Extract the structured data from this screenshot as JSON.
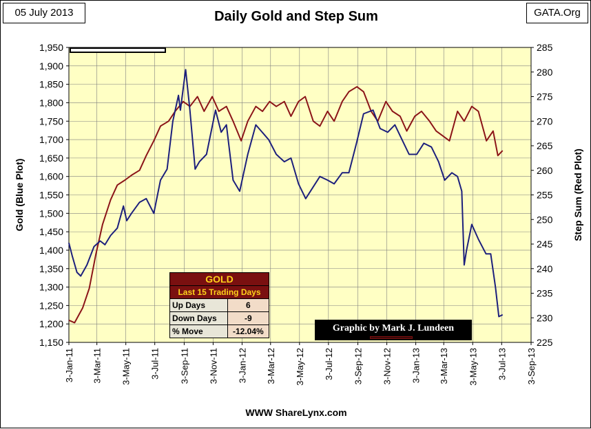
{
  "header": {
    "date": "05 July 2013",
    "title": "Daily Gold and Step Sum",
    "source": "GATA.Org"
  },
  "footer": {
    "url": "WWW ShareLynx.com"
  },
  "colors": {
    "plot_bg": "#ffffc4",
    "gold_line": "#1c1f7c",
    "step_line": "#8b1418",
    "grid": "#7f7f7f"
  },
  "stats": {
    "title": "GOLD",
    "subtitle": "Last 15 Trading Days",
    "rows": [
      {
        "label": "Up Days",
        "value": "6"
      },
      {
        "label": "Down Days",
        "value": "-9"
      },
      {
        "label": "% Move",
        "value": "-12.04%"
      }
    ]
  },
  "credit": {
    "text": "Graphic by Mark J. Lundeen"
  },
  "chart_data": {
    "type": "line",
    "title": "Daily Gold and Step Sum",
    "ylabel": "Gold  (Blue Plot)",
    "y2label": "Step Sum  (Red Plot)",
    "ylim": [
      1150,
      1950
    ],
    "y2lim": [
      225,
      285
    ],
    "x_start": "2011-01-03",
    "x_end": "2013-09-03",
    "x_ticks": [
      "3-Jan-11",
      "3-Mar-11",
      "3-May-11",
      "3-Jul-11",
      "3-Sep-11",
      "3-Nov-11",
      "3-Jan-12",
      "3-Mar-12",
      "3-May-12",
      "3-Jul-12",
      "3-Sep-12",
      "3-Nov-12",
      "3-Jan-13",
      "3-Mar-13",
      "3-May-13",
      "3-Jul-13",
      "3-Sep-13"
    ],
    "y_ticks": [
      "1,150",
      "1,200",
      "1,250",
      "1,300",
      "1,350",
      "1,400",
      "1,450",
      "1,500",
      "1,550",
      "1,600",
      "1,650",
      "1,700",
      "1,750",
      "1,800",
      "1,850",
      "1,900",
      "1,950"
    ],
    "y2_ticks": [
      "225",
      "230",
      "235",
      "240",
      "245",
      "250",
      "255",
      "260",
      "265",
      "270",
      "275",
      "280",
      "285"
    ],
    "grid": true,
    "series": [
      {
        "name": "Gold",
        "x": [
          "2011-01-03",
          "2011-01-10",
          "2011-01-20",
          "2011-01-28",
          "2011-02-10",
          "2011-02-25",
          "2011-03-10",
          "2011-03-20",
          "2011-04-01",
          "2011-04-15",
          "2011-04-28",
          "2011-05-05",
          "2011-05-15",
          "2011-06-01",
          "2011-06-15",
          "2011-07-01",
          "2011-07-15",
          "2011-07-29",
          "2011-08-10",
          "2011-08-22",
          "2011-08-26",
          "2011-09-06",
          "2011-09-15",
          "2011-09-26",
          "2011-10-05",
          "2011-10-20",
          "2011-11-08",
          "2011-11-20",
          "2011-12-01",
          "2011-12-15",
          "2011-12-29",
          "2012-01-15",
          "2012-02-01",
          "2012-02-28",
          "2012-03-15",
          "2012-04-01",
          "2012-04-15",
          "2012-05-01",
          "2012-05-16",
          "2012-05-31",
          "2012-06-15",
          "2012-07-01",
          "2012-07-15",
          "2012-08-01",
          "2012-08-15",
          "2012-08-31",
          "2012-09-15",
          "2012-10-05",
          "2012-10-20",
          "2012-11-05",
          "2012-11-20",
          "2012-12-05",
          "2012-12-20",
          "2013-01-05",
          "2013-01-20",
          "2013-02-05",
          "2013-02-20",
          "2013-03-05",
          "2013-03-20",
          "2013-04-01",
          "2013-04-10",
          "2013-04-15",
          "2013-04-20",
          "2013-05-01",
          "2013-05-15",
          "2013-05-31",
          "2013-06-10",
          "2013-06-20",
          "2013-06-27",
          "2013-07-05"
        ],
        "values": [
          1420,
          1385,
          1340,
          1330,
          1360,
          1410,
          1425,
          1415,
          1440,
          1460,
          1520,
          1480,
          1500,
          1530,
          1540,
          1500,
          1590,
          1620,
          1750,
          1820,
          1780,
          1890,
          1780,
          1620,
          1640,
          1660,
          1780,
          1720,
          1740,
          1590,
          1560,
          1660,
          1740,
          1700,
          1660,
          1640,
          1650,
          1580,
          1540,
          1570,
          1600,
          1590,
          1580,
          1610,
          1610,
          1690,
          1770,
          1780,
          1730,
          1720,
          1740,
          1700,
          1660,
          1660,
          1690,
          1680,
          1640,
          1590,
          1610,
          1600,
          1560,
          1360,
          1400,
          1470,
          1430,
          1390,
          1390,
          1300,
          1220,
          1225
        ]
      },
      {
        "name": "Step Sum",
        "x": [
          "2011-01-03",
          "2011-01-15",
          "2011-02-01",
          "2011-02-15",
          "2011-03-01",
          "2011-03-15",
          "2011-04-01",
          "2011-04-15",
          "2011-05-01",
          "2011-05-15",
          "2011-06-01",
          "2011-06-15",
          "2011-07-01",
          "2011-07-15",
          "2011-08-01",
          "2011-08-15",
          "2011-09-01",
          "2011-09-15",
          "2011-10-01",
          "2011-10-15",
          "2011-11-01",
          "2011-11-15",
          "2011-12-01",
          "2011-12-15",
          "2012-01-01",
          "2012-01-15",
          "2012-02-01",
          "2012-02-15",
          "2012-03-01",
          "2012-03-15",
          "2012-04-01",
          "2012-04-15",
          "2012-05-01",
          "2012-05-15",
          "2012-06-01",
          "2012-06-15",
          "2012-07-01",
          "2012-07-15",
          "2012-08-01",
          "2012-08-15",
          "2012-09-01",
          "2012-09-15",
          "2012-10-01",
          "2012-10-15",
          "2012-11-01",
          "2012-11-15",
          "2012-12-01",
          "2012-12-15",
          "2013-01-01",
          "2013-01-15",
          "2013-02-01",
          "2013-02-15",
          "2013-03-01",
          "2013-03-15",
          "2013-04-01",
          "2013-04-15",
          "2013-05-01",
          "2013-05-15",
          "2013-06-01",
          "2013-06-15",
          "2013-06-25",
          "2013-07-05"
        ],
        "values": [
          229.5,
          229,
          232,
          236,
          243,
          249,
          254,
          257,
          258,
          259,
          260,
          263,
          266,
          269,
          270,
          272,
          274,
          273,
          275,
          272,
          275,
          272,
          273,
          270,
          266,
          270,
          273,
          272,
          274,
          273,
          274,
          271,
          274,
          275,
          270,
          269,
          272,
          270,
          274,
          276,
          277,
          276,
          272,
          270,
          274,
          272,
          271,
          268,
          271,
          272,
          270,
          268,
          267,
          266,
          272,
          270,
          273,
          272,
          266,
          268,
          263,
          264
        ]
      }
    ]
  }
}
